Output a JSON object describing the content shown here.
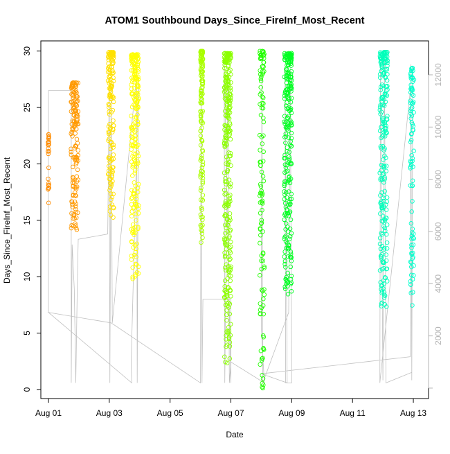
{
  "chart_data": {
    "type": "scatter",
    "title": "ATOM1 Southbound Days_Since_FireInf_Most_Recent",
    "xlabel": "Date",
    "ylabel": "Days_Since_FireInf_Most_Recent",
    "x_ticks": [
      "Aug 01",
      "Aug 03",
      "Aug 05",
      "Aug 07",
      "Aug 09",
      "Aug 11",
      "Aug 13"
    ],
    "x_tick_days": [
      1,
      3,
      5,
      7,
      9,
      11,
      13
    ],
    "xlim": [
      0.75,
      13.5
    ],
    "y_ticks": [
      0,
      5,
      10,
      15,
      20,
      25,
      30
    ],
    "ylim": [
      -0.8,
      30.9
    ],
    "y2_ticks": [
      2000,
      4000,
      6000,
      8000,
      10000,
      12000
    ],
    "y2lim": [
      -400,
      13300
    ],
    "grid": false,
    "colors": {
      "line_series": "#c0c0c0",
      "right_axis": "#b4b4b4",
      "axis": "#000000"
    },
    "series": [
      {
        "color": "#ff8c00",
        "start": 0.98,
        "end": 1.02,
        "y_range": [
          16.5,
          22.7
        ],
        "n": 25
      },
      {
        "color": "#ff9900",
        "start": 1.74,
        "end": 1.98,
        "y_range": [
          14.1,
          27.2
        ],
        "n": 150
      },
      {
        "color": "#ffe100",
        "start": 2.96,
        "end": 3.15,
        "y_range": [
          15.2,
          29.9
        ],
        "n": 150
      },
      {
        "color": "#ffff00",
        "start": 3.72,
        "end": 3.97,
        "y_range": [
          8.8,
          29.7
        ],
        "n": 220
      },
      {
        "color": "#aaff00",
        "start": 6.0,
        "end": 6.08,
        "y_range": [
          12.9,
          30.0
        ],
        "n": 140
      },
      {
        "color": "#8cff00",
        "start": 6.78,
        "end": 7.0,
        "y_range": [
          2.2,
          29.8
        ],
        "n": 300
      },
      {
        "color": "#22ff00",
        "start": 7.95,
        "end": 8.1,
        "y_range": [
          0.1,
          30.0
        ],
        "n": 120
      },
      {
        "color": "#00ff22",
        "start": 8.75,
        "end": 9.0,
        "y_range": [
          8.3,
          29.8
        ],
        "n": 250
      },
      {
        "color": "#00ffbb",
        "start": 11.9,
        "end": 12.15,
        "y_range": [
          7.2,
          29.9
        ],
        "n": 220
      },
      {
        "color": "#00ffcc",
        "start": 12.9,
        "end": 13.02,
        "y_range": [
          7.2,
          28.5
        ],
        "n": 90
      }
    ],
    "line_path": [
      [
        1.0,
        2900
      ],
      [
        1.0,
        11400
      ],
      [
        1.75,
        11400
      ],
      [
        1.75,
        200
      ],
      [
        1.78,
        5500
      ],
      [
        1.85,
        3800
      ],
      [
        1.9,
        200
      ],
      [
        1.95,
        4000
      ],
      [
        1.98,
        5700
      ],
      [
        2.95,
        5900
      ],
      [
        3.0,
        11500
      ],
      [
        3.02,
        200
      ],
      [
        3.06,
        11600
      ],
      [
        3.1,
        2500
      ],
      [
        3.9,
        12000
      ],
      [
        3.92,
        200
      ],
      [
        3.96,
        11800
      ],
      [
        3.72,
        900
      ],
      [
        3.74,
        200
      ],
      [
        1.0,
        2900
      ],
      [
        3.06,
        2500
      ],
      [
        6.0,
        200
      ],
      [
        6.02,
        12500
      ],
      [
        6.05,
        200
      ],
      [
        6.08,
        3400
      ],
      [
        7.0,
        3400
      ],
      [
        7.0,
        200
      ],
      [
        6.78,
        12500
      ],
      [
        6.8,
        200
      ],
      [
        6.9,
        12000
      ],
      [
        6.95,
        200
      ],
      [
        7.0,
        1000
      ],
      [
        8.1,
        200
      ],
      [
        8.0,
        2300
      ],
      [
        8.02,
        12000
      ],
      [
        8.05,
        200
      ],
      [
        8.9,
        2900
      ],
      [
        8.95,
        12300
      ],
      [
        9.0,
        200
      ],
      [
        8.8,
        200
      ],
      [
        8.78,
        12300
      ],
      [
        8.85,
        200
      ],
      [
        8.0,
        550
      ],
      [
        12.9,
        1200
      ],
      [
        12.92,
        12400
      ],
      [
        12.95,
        300
      ],
      [
        12.98,
        12300
      ],
      [
        11.9,
        200
      ],
      [
        11.92,
        12500
      ],
      [
        12.0,
        300
      ],
      [
        12.05,
        12600
      ],
      [
        12.1,
        200
      ],
      [
        12.95,
        600
      ]
    ]
  }
}
